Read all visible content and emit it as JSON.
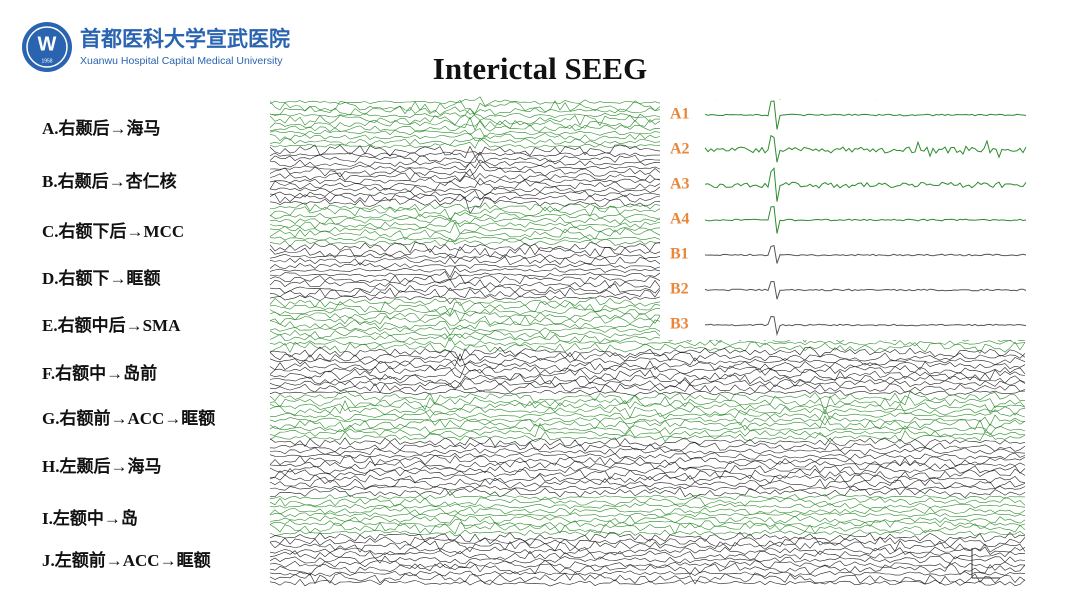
{
  "header": {
    "logo_year": "1958",
    "logo_text": "首都医科大学宣武医院",
    "logo_subtitle": "Xuanwu Hospital Capital Medical University"
  },
  "title": "Interictal SEEG",
  "labels": [
    "A.右颞后→海马",
    "B.右颞后→杏仁核",
    "C.右额下后→MCC",
    "D.右额下→眶额",
    "E.右额中后→SMA",
    "F.右额中→岛前",
    "G.右额前→ACC→眶额",
    "H.左颞后→海马",
    "I.左额中→岛",
    "J.左额前→ACC→眶额"
  ],
  "inset": {
    "channels": [
      "A1",
      "A2",
      "A3",
      "A4",
      "B1",
      "B2",
      "B3"
    ]
  }
}
